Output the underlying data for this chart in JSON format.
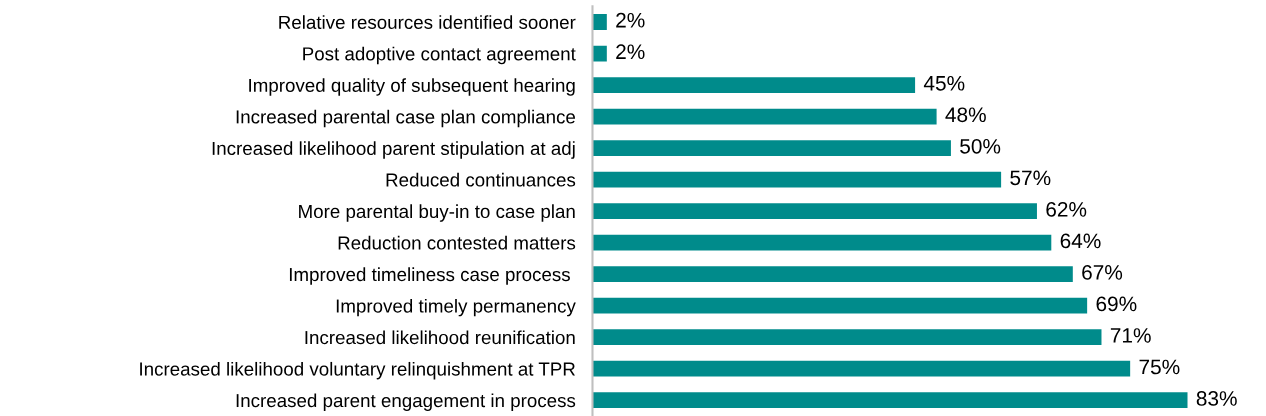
{
  "chart_data": {
    "type": "bar",
    "orientation": "horizontal",
    "categories": [
      "Relative resources identified sooner",
      "Post adoptive contact agreement",
      "Improved quality of subsequent hearing",
      "Increased parental case plan compliance",
      "Increased likelihood parent stipulation at adj",
      "Reduced continuances",
      "More parental buy-in to case plan",
      "Reduction contested matters",
      "Improved timeliness case process ",
      "Improved timely permanency",
      "Increased likelihood reunification",
      "Increased likelihood voluntary relinquishment at TPR",
      "Increased parent engagement in process"
    ],
    "values": [
      2,
      2,
      45,
      48,
      50,
      57,
      62,
      64,
      67,
      69,
      71,
      75,
      83
    ],
    "value_labels": [
      "2%",
      "2%",
      "45%",
      "48%",
      "50%",
      "57%",
      "62%",
      "64%",
      "67%",
      "69%",
      "71%",
      "75%",
      "83%"
    ],
    "color": "#008b8b"
  }
}
